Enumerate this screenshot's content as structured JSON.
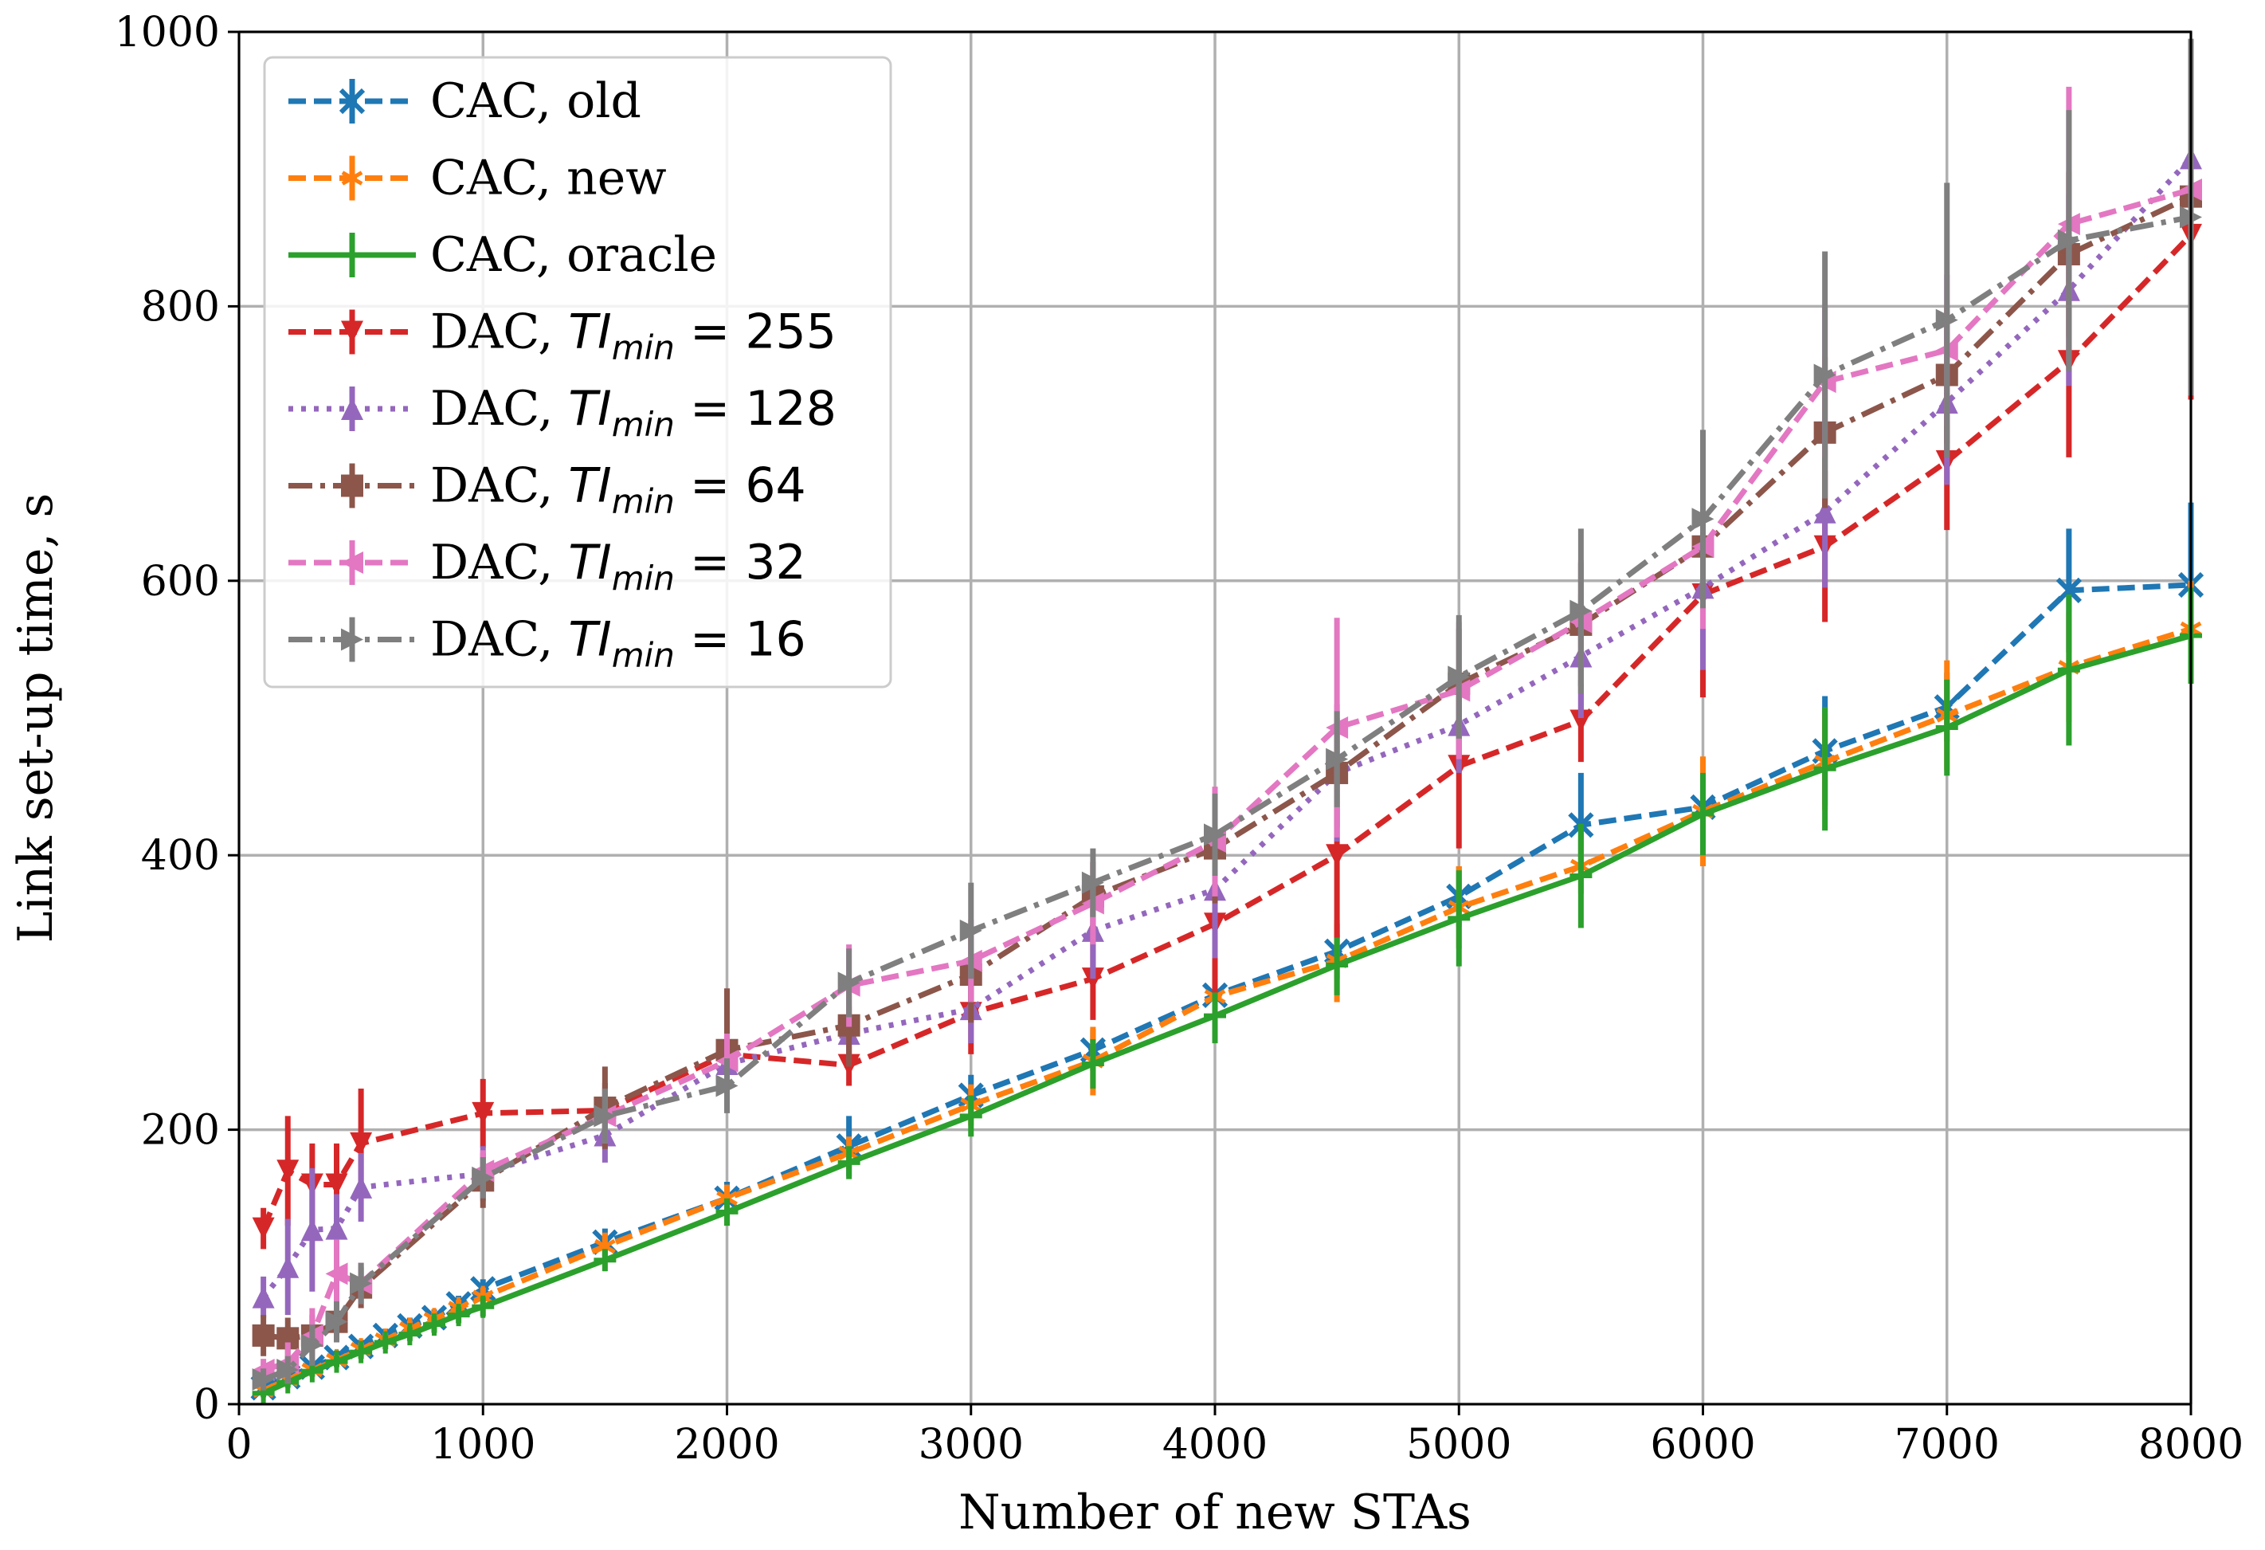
{
  "chart_data": {
    "type": "line",
    "title": "",
    "xlabel": "Number of new STAs",
    "ylabel": "Link set-up time, s",
    "xlim": [
      0,
      8000
    ],
    "ylim": [
      0,
      1000
    ],
    "xticks": [
      0,
      1000,
      2000,
      3000,
      4000,
      5000,
      6000,
      7000,
      8000
    ],
    "yticks": [
      0,
      200,
      400,
      600,
      800,
      1000
    ],
    "xtick_labels": [
      "0",
      "1000",
      "2000",
      "3000",
      "4000",
      "5000",
      "6000",
      "7000",
      "8000"
    ],
    "ytick_labels": [
      "0",
      "200",
      "400",
      "600",
      "800",
      "1000"
    ],
    "grid": true,
    "legend_position": "top-left",
    "series": [
      {
        "name": "CAC, old",
        "color": "#1f77b4",
        "dash": "dashed",
        "marker": "x",
        "x": [
          100,
          200,
          300,
          400,
          500,
          600,
          700,
          800,
          900,
          1000,
          1500,
          2000,
          2500,
          3000,
          3500,
          4000,
          4500,
          5000,
          5500,
          6000,
          6500,
          7000,
          7500,
          8000
        ],
        "y": [
          12,
          20,
          27,
          34,
          42,
          50,
          57,
          63,
          73,
          84,
          118,
          150,
          188,
          225,
          258,
          298,
          330,
          370,
          422,
          435,
          476,
          508,
          593,
          597
        ],
        "err": [
          3,
          4,
          4,
          5,
          5,
          5,
          6,
          6,
          6,
          7,
          10,
          12,
          22,
          15,
          15,
          18,
          20,
          22,
          38,
          20,
          40,
          25,
          45,
          60
        ]
      },
      {
        "name": "CAC, new",
        "color": "#ff7f0e",
        "dash": "dashed",
        "marker": "star",
        "x": [
          100,
          200,
          300,
          400,
          500,
          600,
          700,
          800,
          900,
          1000,
          1500,
          2000,
          2500,
          3000,
          3500,
          4000,
          4500,
          5000,
          5500,
          6000,
          6500,
          7000,
          7500,
          8000
        ],
        "y": [
          10,
          18,
          25,
          32,
          40,
          47,
          55,
          62,
          70,
          78,
          115,
          150,
          183,
          218,
          250,
          297,
          323,
          362,
          392,
          432,
          468,
          502,
          537,
          565
        ],
        "err": [
          3,
          4,
          4,
          4,
          5,
          5,
          6,
          6,
          6,
          7,
          10,
          10,
          12,
          15,
          25,
          25,
          30,
          30,
          20,
          40,
          35,
          40,
          40,
          35
        ]
      },
      {
        "name": "CAC, oracle",
        "color": "#2ca02c",
        "dash": "solid",
        "marker": "plus",
        "x": [
          100,
          200,
          300,
          400,
          500,
          600,
          700,
          800,
          900,
          1000,
          1500,
          2000,
          2500,
          3000,
          3500,
          4000,
          4500,
          5000,
          5500,
          6000,
          6500,
          7000,
          7500,
          8000
        ],
        "y": [
          8,
          16,
          24,
          31,
          38,
          45,
          51,
          58,
          65,
          71,
          105,
          140,
          176,
          210,
          248,
          283,
          320,
          354,
          385,
          430,
          463,
          493,
          535,
          560
        ],
        "err": [
          3,
          4,
          4,
          4,
          5,
          5,
          5,
          6,
          6,
          7,
          8,
          10,
          12,
          15,
          18,
          20,
          22,
          35,
          38,
          30,
          45,
          35,
          55,
          35
        ]
      },
      {
        "name": "DAC, TI_min = 255",
        "label_prefix": "DAC, ",
        "label_symbol": "TI",
        "label_sub": "min",
        "label_suffix": " = 255",
        "color": "#d62728",
        "dash": "dashed",
        "marker": "triangle-down",
        "x": [
          100,
          200,
          300,
          400,
          500,
          1000,
          1500,
          2000,
          2500,
          3000,
          3500,
          4000,
          4500,
          5000,
          5500,
          6000,
          6500,
          7000,
          7500,
          8000
        ],
        "y": [
          128,
          170,
          160,
          160,
          190,
          212,
          214,
          255,
          247,
          285,
          310,
          350,
          400,
          465,
          498,
          590,
          625,
          687,
          760,
          852
        ],
        "err": [
          15,
          40,
          30,
          30,
          40,
          25,
          20,
          40,
          15,
          30,
          30,
          50,
          60,
          60,
          30,
          75,
          55,
          50,
          70,
          120
        ]
      },
      {
        "name": "DAC, TI_min = 128",
        "label_prefix": "DAC, ",
        "label_symbol": "TI",
        "label_sub": "min",
        "label_suffix": " = 128",
        "color": "#9467bd",
        "dash": "dotted",
        "marker": "triangle-up",
        "x": [
          100,
          200,
          300,
          400,
          500,
          1000,
          1500,
          2000,
          2500,
          3000,
          3500,
          4000,
          4500,
          5000,
          5500,
          6000,
          6500,
          7000,
          7500,
          8000
        ],
        "y": [
          78,
          100,
          127,
          128,
          158,
          168,
          196,
          248,
          270,
          288,
          345,
          375,
          460,
          495,
          545,
          595,
          650,
          730,
          812,
          908
        ],
        "err": [
          15,
          35,
          45,
          25,
          25,
          20,
          20,
          25,
          20,
          25,
          35,
          50,
          50,
          35,
          45,
          60,
          55,
          60,
          70,
          50
        ]
      },
      {
        "name": "DAC, TI_min = 64",
        "label_prefix": "DAC, ",
        "label_symbol": "TI",
        "label_sub": "min",
        "label_suffix": " = 64",
        "color": "#8c564b",
        "dash": "dashdot",
        "marker": "square",
        "x": [
          100,
          200,
          300,
          400,
          500,
          1000,
          1500,
          2000,
          2500,
          3000,
          3500,
          4000,
          4500,
          5000,
          5500,
          6000,
          6500,
          7000,
          7500,
          8000
        ],
        "y": [
          50,
          48,
          50,
          60,
          85,
          163,
          216,
          258,
          276,
          313,
          370,
          405,
          460,
          525,
          568,
          625,
          708,
          750,
          838,
          880
        ],
        "err": [
          15,
          15,
          15,
          15,
          15,
          20,
          30,
          45,
          30,
          35,
          25,
          40,
          40,
          40,
          45,
          50,
          55,
          50,
          60,
          80
        ]
      },
      {
        "name": "DAC, TI_min = 32",
        "label_prefix": "DAC, ",
        "label_symbol": "TI",
        "label_sub": "min",
        "label_suffix": " = 32",
        "color": "#e377c2",
        "dash": "dashed",
        "marker": "triangle-left",
        "x": [
          100,
          200,
          300,
          400,
          500,
          1000,
          1500,
          2000,
          2500,
          3000,
          3500,
          4000,
          4500,
          5000,
          5500,
          6000,
          6500,
          7000,
          7500,
          8000
        ],
        "y": [
          25,
          30,
          50,
          95,
          88,
          170,
          210,
          250,
          305,
          323,
          365,
          410,
          493,
          520,
          570,
          625,
          745,
          768,
          860,
          885
        ],
        "err": [
          8,
          15,
          20,
          25,
          15,
          15,
          20,
          20,
          30,
          30,
          30,
          40,
          80,
          50,
          45,
          60,
          55,
          55,
          100,
          80
        ]
      },
      {
        "name": "DAC, TI_min = 16",
        "label_prefix": "DAC, ",
        "label_symbol": "TI",
        "label_sub": "min",
        "label_suffix": " = 16",
        "color": "#7f7f7f",
        "dash": "dashdot",
        "marker": "triangle-right",
        "x": [
          100,
          200,
          300,
          400,
          500,
          1000,
          1500,
          2000,
          2500,
          3000,
          3500,
          4000,
          4500,
          5000,
          5500,
          6000,
          6500,
          7000,
          7500,
          8000
        ],
        "y": [
          18,
          25,
          43,
          60,
          88,
          165,
          210,
          232,
          307,
          345,
          380,
          415,
          470,
          530,
          578,
          645,
          750,
          790,
          848,
          865
        ],
        "err": [
          8,
          10,
          15,
          15,
          15,
          15,
          20,
          20,
          25,
          35,
          25,
          30,
          35,
          45,
          60,
          65,
          90,
          100,
          95,
          130
        ]
      }
    ]
  }
}
